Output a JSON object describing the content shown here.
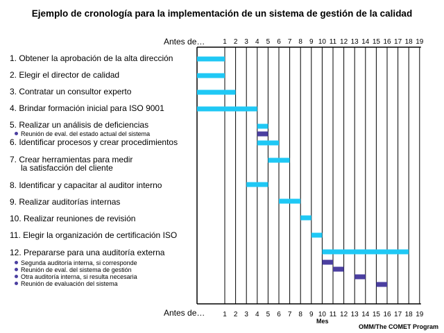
{
  "chart_data": {
    "type": "gantt",
    "title": "Ejemplo de cronología para la implementación de un sistema de gestión de la calidad",
    "x_axis_start_label": "Antes de…",
    "x_ticks": [
      "1",
      "2",
      "3",
      "4",
      "5",
      "6",
      "7",
      "8",
      "9",
      "10",
      "11",
      "12",
      "13",
      "14",
      "15",
      "16",
      "17",
      "18",
      "19"
    ],
    "xlabel": "Mes",
    "xlim": [
      -1.5,
      19
    ],
    "colors": {
      "main_task": "#1fc8f5",
      "sub_task": "#4b3fa0"
    },
    "tasks": [
      {
        "label": "1. Obtener la aprobación de la alta dirección",
        "start": -1.5,
        "end": 1
      },
      {
        "label": "2. Elegir el director de calidad",
        "start": -1.5,
        "end": 1
      },
      {
        "label": "3. Contratar un consultor experto",
        "start": -1.5,
        "end": 2
      },
      {
        "label": "4. Brindar formación inicial para ISO 9001",
        "start": -1.5,
        "end": 4
      },
      {
        "label": "5. Realizar un análisis de deficiencias",
        "start": 4,
        "end": 5,
        "subtasks": [
          {
            "label": "Reunión de eval. del estado actual del sistema",
            "start": 4,
            "end": 5
          }
        ]
      },
      {
        "label": "6. Identificar procesos y crear procedimientos",
        "start": 4,
        "end": 6
      },
      {
        "label": "7. Crear herramientas para medir",
        "label2": "la satisfacción del cliente",
        "start": 5,
        "end": 7
      },
      {
        "label": "8. Identificar y capacitar al auditor interno",
        "start": 3,
        "end": 5
      },
      {
        "label": "9. Realizar auditorías internas",
        "start": 6,
        "end": 8
      },
      {
        "label": "10. Realizar reuniones de revisión",
        "start": 8,
        "end": 9
      },
      {
        "label": "11. Elegir la organización de certificación ISO",
        "start": 9,
        "end": 10
      },
      {
        "label": "12. Prepararse para una auditoría externa",
        "start": 10,
        "end": 18,
        "subtasks": [
          {
            "label": "Segunda auditoría interna, si corresponde",
            "start": 10,
            "end": 11
          },
          {
            "label": "Reunión de eval. del sistema de gestión",
            "start": 11,
            "end": 12
          },
          {
            "label": "Otra auditoría interna, si resulta necesaria",
            "start": 13,
            "end": 14
          },
          {
            "label": "Reunión de evaluación del sistema",
            "start": 15,
            "end": 16
          }
        ]
      }
    ]
  },
  "credit": "OMM/The COMET Program"
}
